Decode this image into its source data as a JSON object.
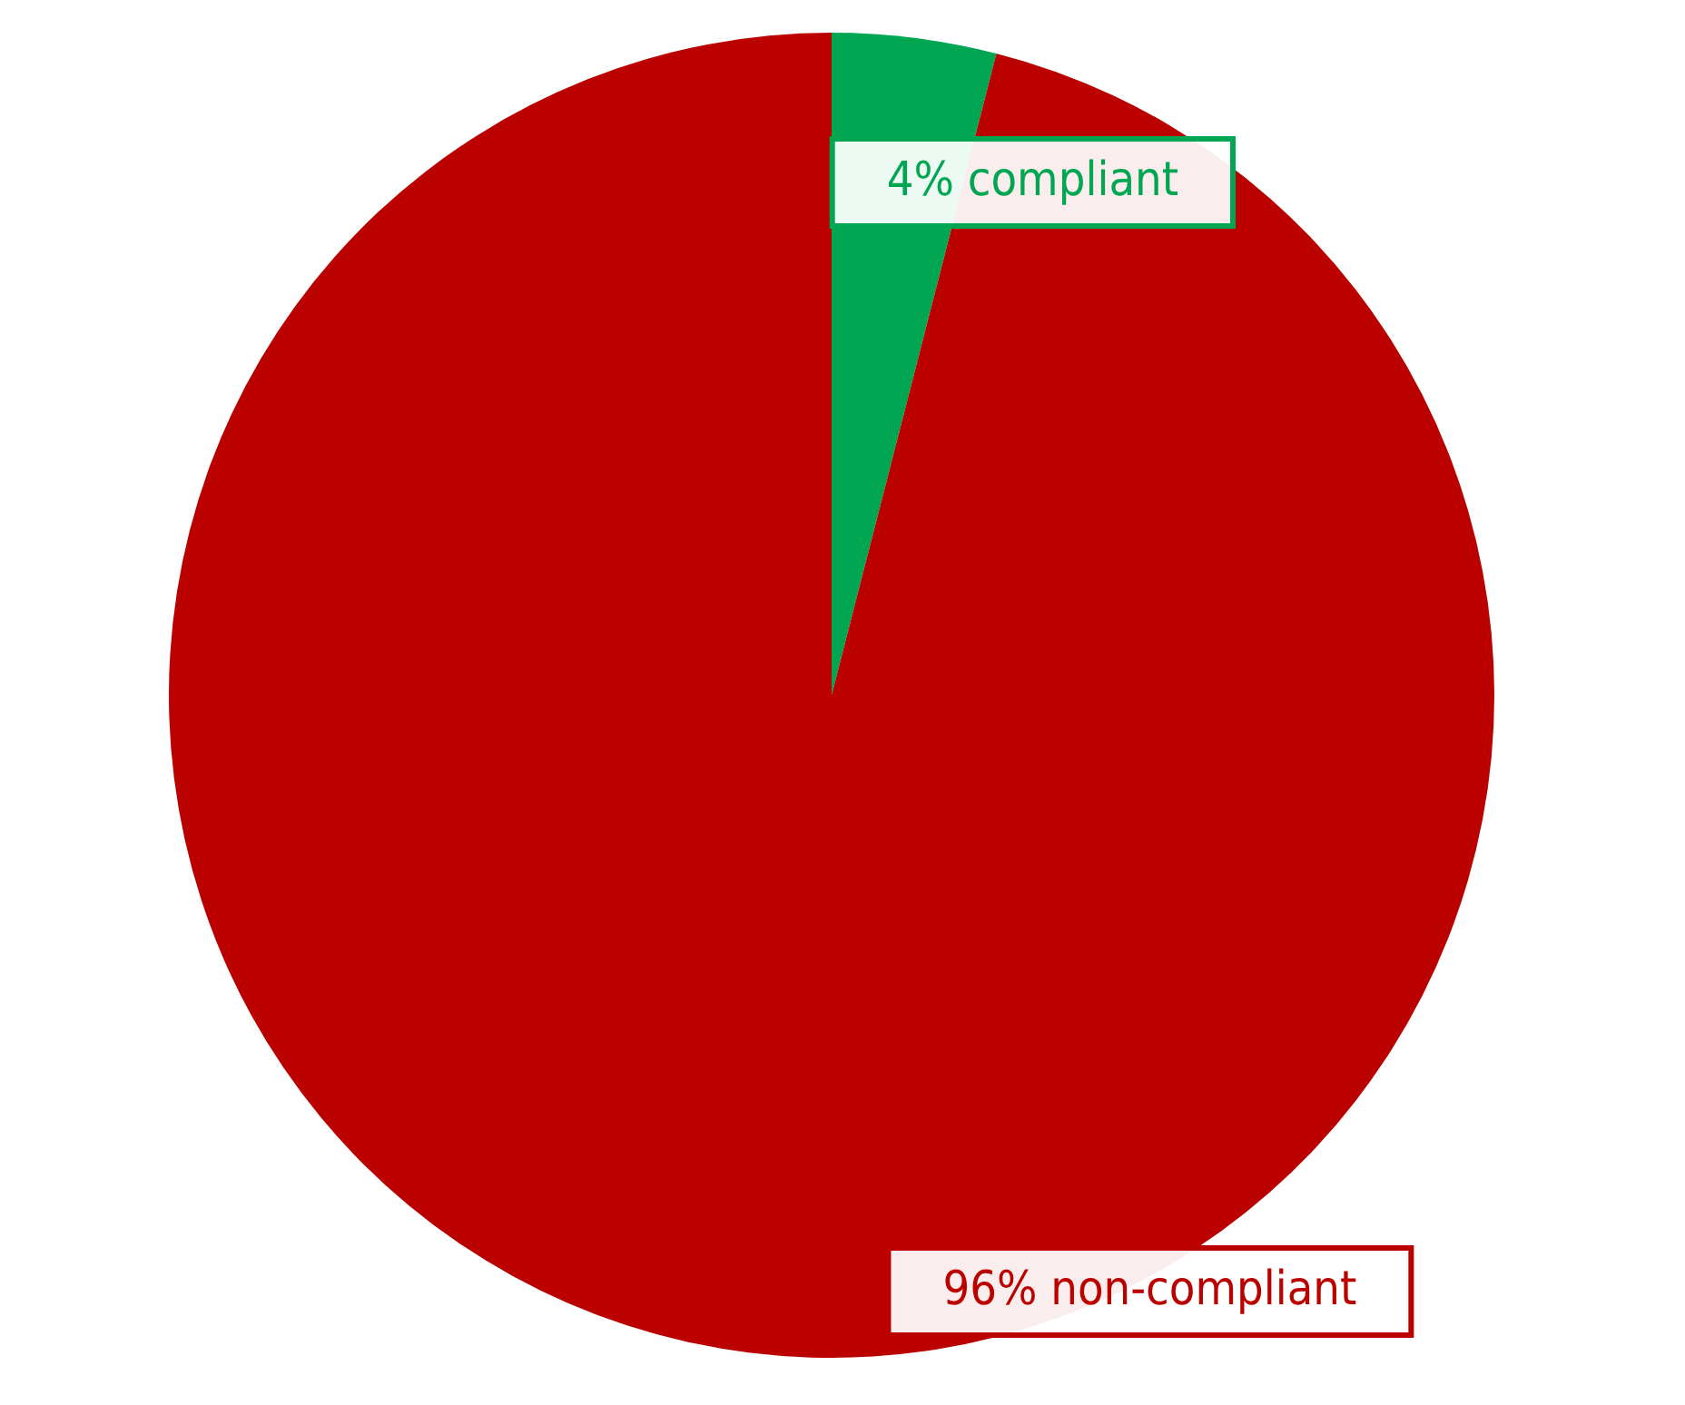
{
  "chart_data": {
    "type": "pie",
    "categories": [
      "compliant",
      "non-compliant"
    ],
    "values": [
      4,
      96
    ],
    "colors": [
      "#00a651",
      "#bb0000"
    ],
    "value_labels": [
      "4%",
      "96%"
    ],
    "legend": false
  }
}
